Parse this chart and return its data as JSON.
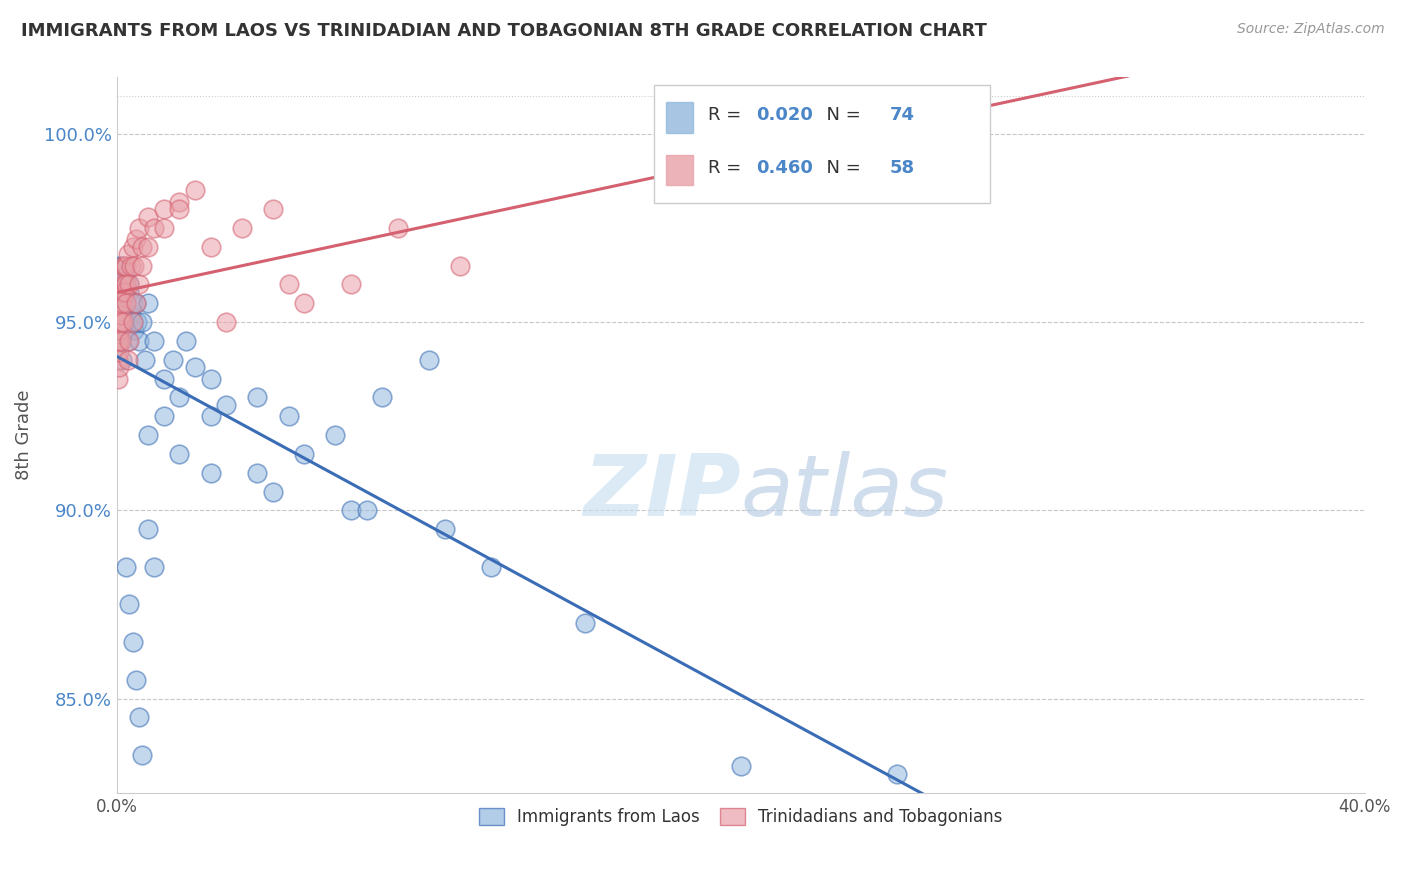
{
  "title": "IMMIGRANTS FROM LAOS VS TRINIDADIAN AND TOBAGONIAN 8TH GRADE CORRELATION CHART",
  "source": "Source: ZipAtlas.com",
  "ylabel": "8th Grade",
  "legend_label1": "Immigrants from Laos",
  "legend_label2": "Trinidadians and Tobagonians",
  "R1": 0.02,
  "N1": 74,
  "R2": 0.46,
  "N2": 58,
  "color_blue": "#92b8de",
  "color_pink": "#e8a0a8",
  "color_blue_line": "#3a6db5",
  "color_pink_line": "#d46070",
  "xlim": [
    0,
    40
  ],
  "ylim": [
    82.5,
    101.5
  ],
  "ytick_vals": [
    85.0,
    90.0,
    95.0,
    100.0
  ],
  "ytick_labels": [
    "85.0%",
    "90.0%",
    "95.0%",
    "100.0%"
  ],
  "blue_x": [
    0.05,
    0.05,
    0.06,
    0.07,
    0.08,
    0.09,
    0.1,
    0.1,
    0.12,
    0.12,
    0.13,
    0.14,
    0.15,
    0.15,
    0.16,
    0.17,
    0.18,
    0.2,
    0.2,
    0.22,
    0.25,
    0.25,
    0.28,
    0.3,
    0.3,
    0.35,
    0.4,
    0.4,
    0.45,
    0.5,
    0.5,
    0.55,
    0.6,
    0.65,
    0.7,
    0.8,
    0.9,
    1.0,
    1.2,
    1.5,
    1.8,
    2.2,
    2.5,
    3.0,
    3.5,
    4.5,
    5.5,
    7.0,
    8.5,
    10.0,
    1.0,
    1.5,
    2.0,
    3.0,
    5.0,
    7.5,
    0.3,
    0.4,
    0.5,
    0.6,
    0.7,
    0.8,
    1.0,
    1.2,
    2.0,
    3.0,
    4.5,
    6.0,
    8.0,
    10.5,
    12.0,
    15.0,
    20.0,
    25.0
  ],
  "blue_y": [
    94.5,
    95.2,
    95.8,
    96.2,
    96.5,
    94.8,
    96.0,
    95.5,
    95.8,
    96.2,
    95.0,
    94.5,
    96.5,
    95.2,
    94.0,
    95.5,
    95.8,
    96.0,
    95.0,
    94.8,
    96.2,
    95.5,
    95.0,
    96.0,
    95.5,
    94.5,
    95.8,
    96.0,
    95.2,
    95.5,
    95.0,
    94.8,
    95.5,
    95.0,
    94.5,
    95.0,
    94.0,
    95.5,
    94.5,
    93.5,
    94.0,
    94.5,
    93.8,
    93.5,
    92.8,
    93.0,
    92.5,
    92.0,
    93.0,
    94.0,
    92.0,
    92.5,
    91.5,
    91.0,
    90.5,
    90.0,
    88.5,
    87.5,
    86.5,
    85.5,
    84.5,
    83.5,
    89.5,
    88.5,
    93.0,
    92.5,
    91.0,
    91.5,
    90.0,
    89.5,
    88.5,
    87.0,
    83.2,
    83.0
  ],
  "pink_x": [
    0.02,
    0.03,
    0.04,
    0.05,
    0.05,
    0.06,
    0.07,
    0.08,
    0.08,
    0.09,
    0.1,
    0.1,
    0.12,
    0.13,
    0.14,
    0.15,
    0.15,
    0.16,
    0.18,
    0.2,
    0.2,
    0.22,
    0.25,
    0.25,
    0.28,
    0.3,
    0.3,
    0.35,
    0.4,
    0.45,
    0.5,
    0.55,
    0.6,
    0.7,
    0.8,
    1.0,
    1.2,
    1.5,
    2.0,
    2.5,
    3.0,
    4.0,
    5.0,
    6.0,
    7.5,
    9.0,
    11.0,
    0.35,
    0.4,
    0.5,
    0.6,
    0.7,
    0.8,
    1.0,
    1.5,
    2.0,
    3.5,
    5.5
  ],
  "pink_y": [
    93.5,
    94.0,
    94.5,
    93.8,
    95.0,
    95.5,
    94.2,
    95.8,
    94.5,
    95.0,
    95.5,
    94.8,
    95.0,
    95.2,
    94.5,
    96.0,
    95.5,
    96.2,
    95.8,
    96.5,
    95.0,
    96.0,
    96.5,
    95.8,
    96.0,
    96.5,
    95.5,
    96.8,
    96.0,
    96.5,
    97.0,
    96.5,
    97.2,
    97.5,
    97.0,
    97.8,
    97.5,
    98.0,
    98.2,
    98.5,
    97.0,
    97.5,
    98.0,
    95.5,
    96.0,
    97.5,
    96.5,
    94.0,
    94.5,
    95.0,
    95.5,
    96.0,
    96.5,
    97.0,
    97.5,
    98.0,
    95.0,
    96.0
  ]
}
